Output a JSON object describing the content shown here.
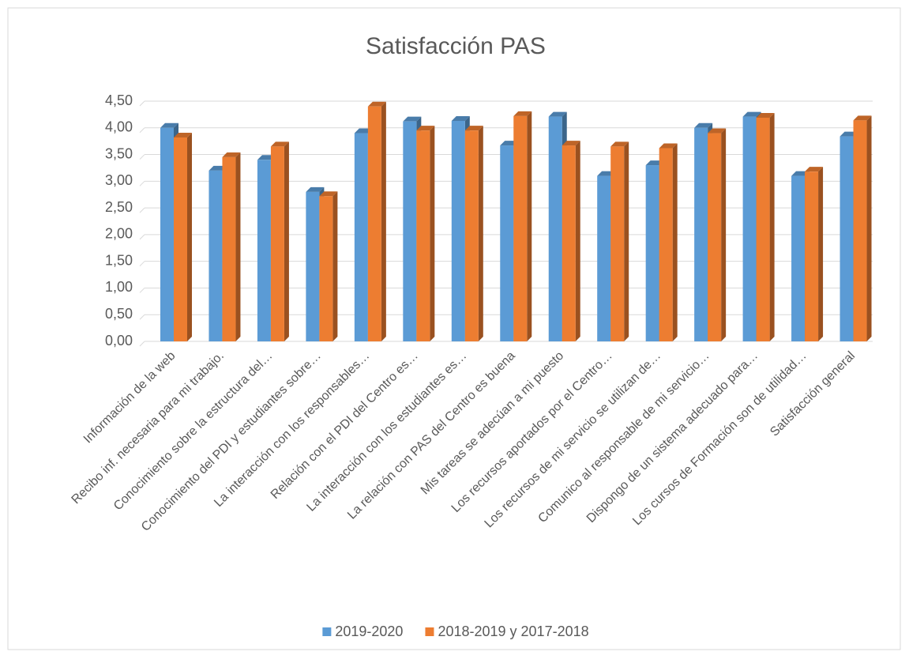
{
  "chart_data": {
    "type": "bar",
    "title": "Satisfacción PAS",
    "categories": [
      "Información de la web",
      "Recibo inf. necesaria para mi trabajo.",
      "Conocimiento sobre la estructura del…",
      "Conocimiento del PDI y estudiantes sobre…",
      "La interacción con los responsables…",
      "Relación con el PDI del Centro es…",
      "La interacción con los estudiantes  es…",
      "La relación con PAS del Centro es buena",
      "Mis tareas se adecúan a  mi puesto",
      "Los recursos aportados por el Centro…",
      "Los recursos de mi servicio se utilizan de…",
      "Comunico al responsable de mi servicio…",
      "Dispongo de un sistema adecuado para…",
      "Los cursos de Formación  son de utilidad…",
      "Satisfacción general"
    ],
    "series": [
      {
        "name": "2019-2020",
        "color": "#5b9bd5",
        "values": [
          4.0,
          3.2,
          3.4,
          2.8,
          3.9,
          4.12,
          4.13,
          3.67,
          4.21,
          3.1,
          3.3,
          4.0,
          4.21,
          3.1,
          3.84
        ]
      },
      {
        "name": "2018-2019 y 2017-2018",
        "color": "#ed7d31",
        "values": [
          3.82,
          3.45,
          3.65,
          2.72,
          4.4,
          3.95,
          3.95,
          4.22,
          3.67,
          3.65,
          3.62,
          3.9,
          4.19,
          3.18,
          4.14
        ]
      }
    ],
    "ylim": [
      0,
      4.5
    ],
    "yticks": [
      {
        "value": 0,
        "label": "0,00"
      },
      {
        "value": 0.5,
        "label": "0,50"
      },
      {
        "value": 1,
        "label": "1,00"
      },
      {
        "value": 1.5,
        "label": "1,50"
      },
      {
        "value": 2,
        "label": "2,00"
      },
      {
        "value": 2.5,
        "label": "2,50"
      },
      {
        "value": 3,
        "label": "3,00"
      },
      {
        "value": 3.5,
        "label": "3,50"
      },
      {
        "value": 4,
        "label": "4,00"
      },
      {
        "value": 4.5,
        "label": "4,50"
      }
    ],
    "grid": true,
    "legend": "bottom"
  }
}
